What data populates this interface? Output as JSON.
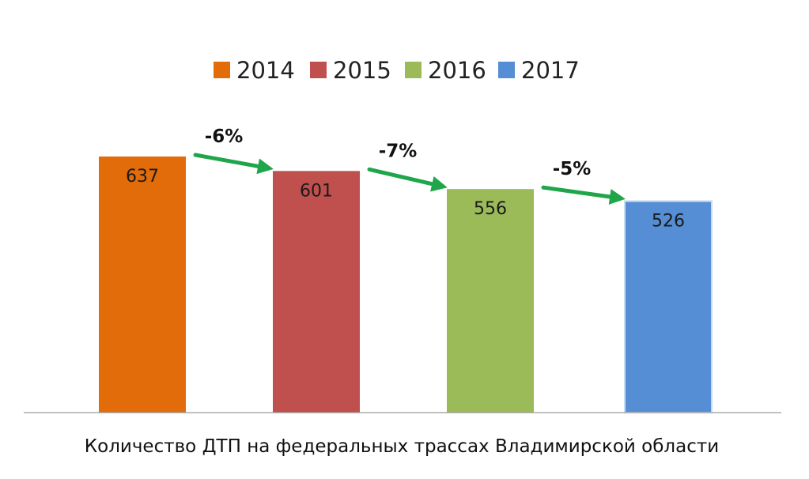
{
  "chart_data": {
    "type": "bar",
    "categories": [
      "2014",
      "2015",
      "2016",
      "2017"
    ],
    "values": [
      637,
      601,
      556,
      526
    ],
    "colors": [
      "#E36C0A",
      "#C0504D",
      "#9BBB59",
      "#558ED5"
    ],
    "legend": {
      "position": "top",
      "entries": [
        "2014",
        "2015",
        "2016",
        "2017"
      ]
    },
    "changes": [
      "-6%",
      "-7%",
      "-5%"
    ],
    "change_arrow_color": "#1FA64A",
    "xlabel": "Количество ДТП на федеральных трассах Владимирской области",
    "ylim": [
      0,
      637
    ],
    "grid": false,
    "data_labels": true
  }
}
